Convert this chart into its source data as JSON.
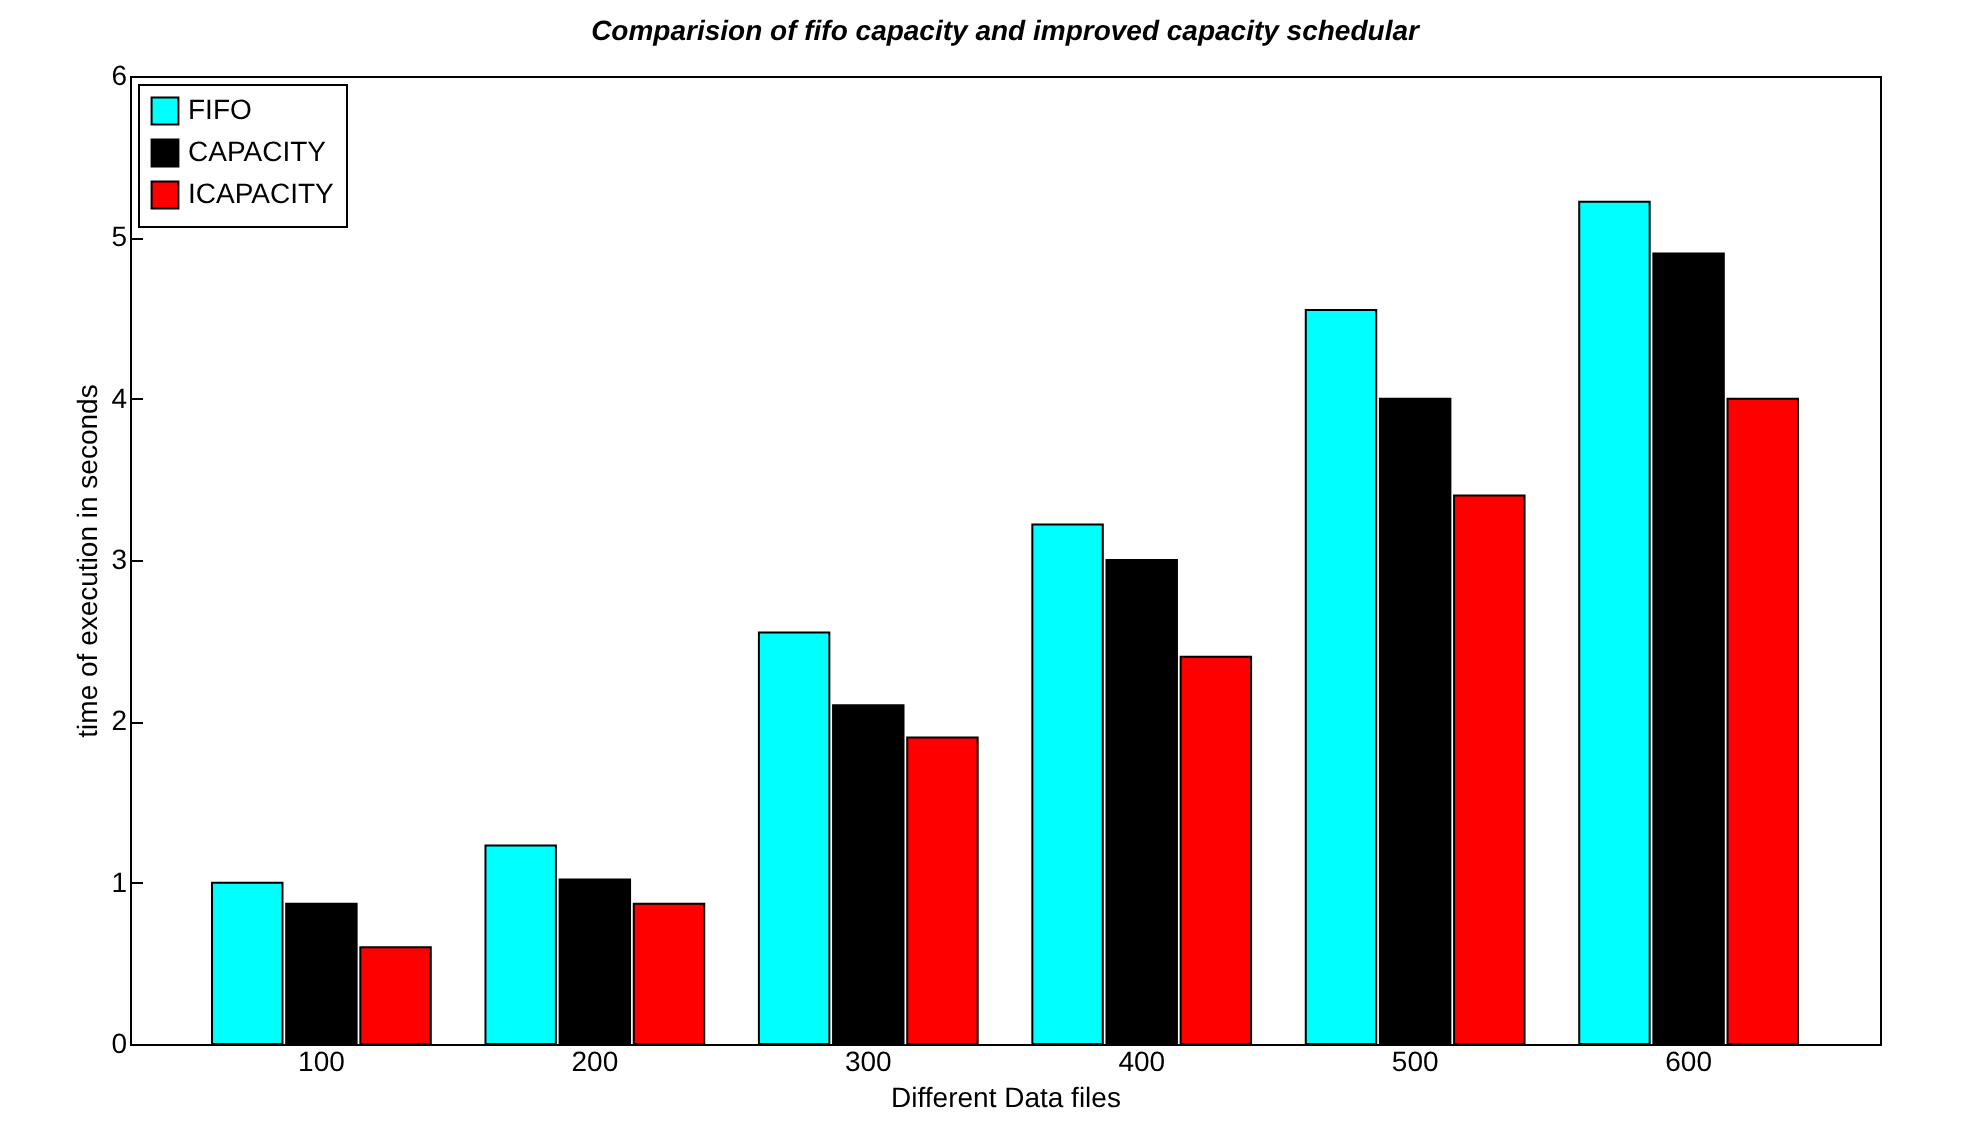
{
  "chart_data": {
    "type": "bar",
    "title": "Comparision of fifo capacity and improved capacity schedular",
    "xlabel": "Different Data files",
    "ylabel": "time of execution in seconds",
    "categories": [
      "100",
      "200",
      "300",
      "400",
      "500",
      "600"
    ],
    "series": [
      {
        "name": "FIFO",
        "color": "#00ffff",
        "values": [
          1.0,
          1.23,
          2.55,
          3.22,
          4.55,
          5.22
        ]
      },
      {
        "name": "CAPACITY",
        "color": "#000000",
        "values": [
          0.87,
          1.02,
          2.1,
          3.0,
          4.0,
          4.9
        ]
      },
      {
        "name": "ICAPACITY",
        "color": "#ff0000",
        "values": [
          0.6,
          0.87,
          1.9,
          2.4,
          3.4,
          4.0
        ]
      }
    ],
    "ylim": [
      0,
      6
    ],
    "yticks": [
      0,
      1,
      2,
      3,
      4,
      5,
      6
    ],
    "grid": false,
    "legend": "top left"
  }
}
